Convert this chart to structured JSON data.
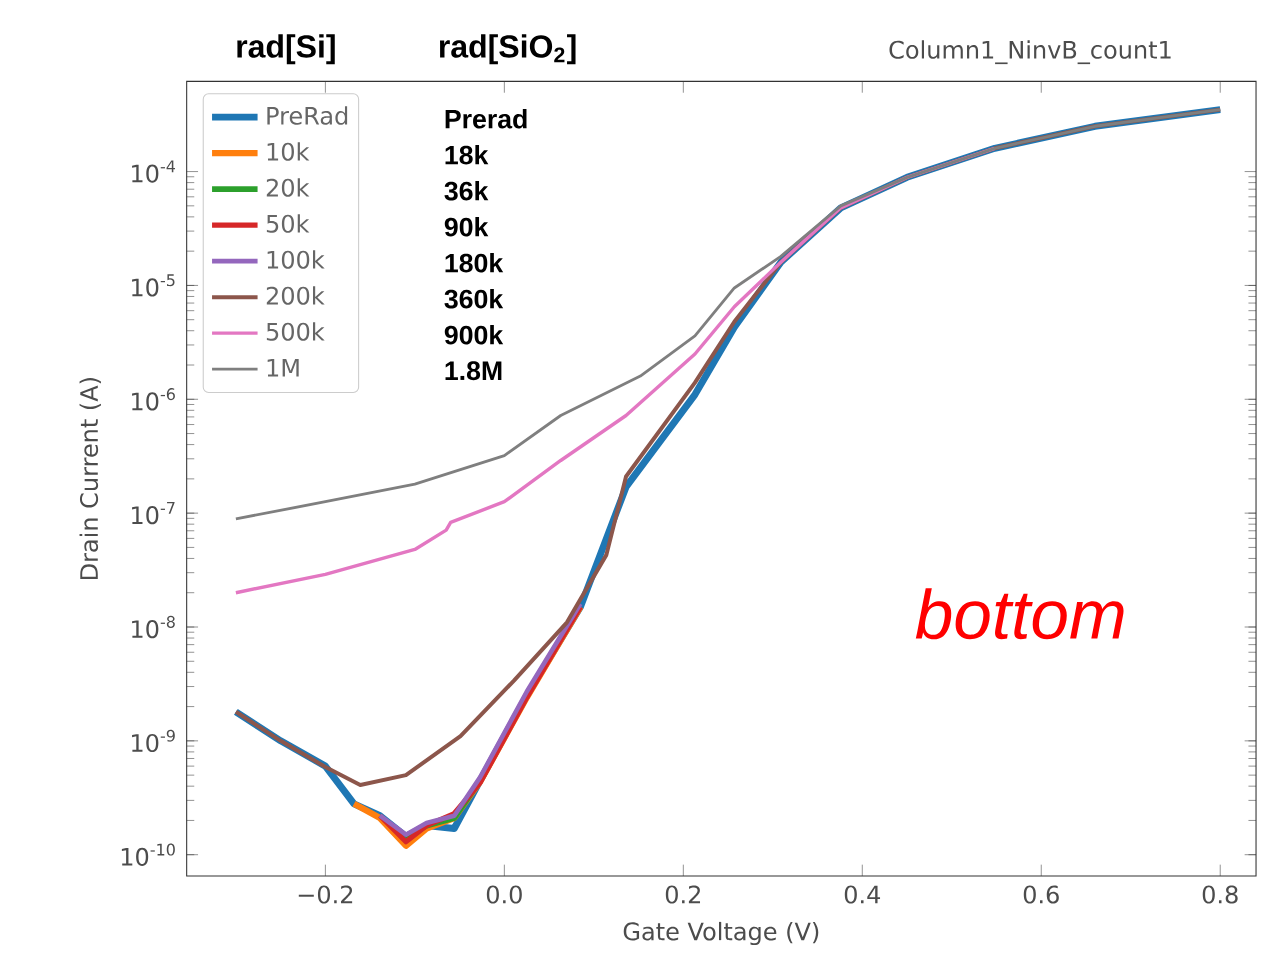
{
  "chart_data": {
    "type": "line",
    "title": "Column1_NinvB_count1",
    "xlabel": "Gate Voltage (V)",
    "ylabel": "Drain Current (A)",
    "annotations": [
      "rad[Si]",
      "rad[SiO$_{2}$]",
      "Prerad",
      "18k",
      "36k",
      "90k",
      "180k",
      "360k",
      "900k",
      "1.8M",
      "bottom"
    ],
    "log": "y",
    "xlim": [
      -0.355,
      0.84
    ],
    "ylim": [
      6.5e-11,
      0.00062
    ],
    "xticks": [
      {
        "value": -0.2,
        "label": "−0.2"
      },
      {
        "value": 0.0,
        "label": "0.0"
      },
      {
        "value": 0.2,
        "label": "0.2"
      },
      {
        "value": 0.4,
        "label": "0.4"
      },
      {
        "value": 0.6,
        "label": "0.6"
      },
      {
        "value": 0.8,
        "label": "0.8"
      }
    ],
    "yticks": [
      {
        "value": 1e-10,
        "label": "10$^{-10}$"
      },
      {
        "value": 1e-09,
        "label": "10$^{-9}$"
      },
      {
        "value": 1e-08,
        "label": "10$^{-8}$"
      },
      {
        "value": 1e-07,
        "label": "10$^{-7}$"
      },
      {
        "value": 1e-06,
        "label": "10$^{-6}$"
      },
      {
        "value": 1e-05,
        "label": "10$^{-5}$"
      },
      {
        "value": 0.0001,
        "label": "10$^{-4}$"
      }
    ],
    "grid": false,
    "legend": "top left",
    "marker": "none",
    "line_style": "solid",
    "series": [
      {
        "name": "PreRad",
        "color": "#1f77b4",
        "x": [
          -0.3,
          -0.25,
          -0.2,
          -0.168,
          -0.139,
          -0.11,
          -0.087,
          -0.056,
          -0.027,
          0.025,
          0.085,
          0.136,
          0.213,
          0.257,
          0.309,
          0.376,
          0.45,
          0.548,
          0.66,
          0.8
        ],
        "values": [
          1.8e-09,
          1e-09,
          6e-10,
          2.8e-10,
          2.2e-10,
          1.45e-10,
          1.8e-10,
          1.7e-10,
          4.5e-10,
          2.5e-09,
          1.5e-08,
          1.7e-07,
          1.1e-06,
          4.3e-06,
          1.6e-05,
          4.8e-05,
          8.9e-05,
          0.00016,
          0.00025,
          0.00035
        ]
      },
      {
        "name": "10k",
        "color": "#ff7f0e",
        "x": [
          -0.168,
          -0.139,
          -0.11,
          -0.087,
          -0.056,
          -0.027,
          0.025,
          0.085
        ],
        "values": [
          2.8e-10,
          2.1e-10,
          1.2e-10,
          1.7e-10,
          2.1e-10,
          4.4e-10,
          2.4e-09,
          1.5e-08
        ]
      },
      {
        "name": "20k",
        "color": "#2ca02c",
        "x": [
          -0.11,
          -0.087,
          -0.056,
          -0.027
        ],
        "values": [
          1.4e-10,
          1.8e-10,
          2.1e-10,
          4.5e-10
        ]
      },
      {
        "name": "50k",
        "color": "#d62728",
        "x": [
          -0.139,
          -0.11,
          -0.087,
          -0.056,
          -0.027,
          0.025,
          0.085
        ],
        "values": [
          2.2e-10,
          1.3e-10,
          1.8e-10,
          2.3e-10,
          4.3e-10,
          2.4e-09,
          1.5e-08
        ]
      },
      {
        "name": "100k",
        "color": "#9467bd",
        "x": [
          -0.139,
          -0.11,
          -0.087,
          -0.056,
          -0.027,
          0.025,
          0.085
        ],
        "values": [
          2.2e-10,
          1.5e-10,
          1.9e-10,
          2.2e-10,
          4.8e-10,
          2.7e-09,
          1.6e-08
        ]
      },
      {
        "name": "200k",
        "color": "#8c564b",
        "x": [
          -0.3,
          -0.25,
          -0.2,
          -0.161,
          -0.11,
          -0.049,
          0.011,
          0.07,
          0.114,
          0.136,
          0.213,
          0.257,
          0.309,
          0.376,
          0.45,
          0.548,
          0.66,
          0.8
        ],
        "values": [
          1.8e-09,
          1e-09,
          5.9e-10,
          4.1e-10,
          5e-10,
          1.1e-09,
          3.4e-09,
          1.1e-08,
          4.3e-08,
          2.1e-07,
          1.4e-06,
          4.8e-06,
          1.6e-05,
          4.8e-05,
          8.9e-05,
          0.00016,
          0.00025,
          0.00035
        ]
      },
      {
        "name": "500k",
        "color": "#e377c2",
        "x": [
          -0.3,
          -0.2,
          -0.1,
          -0.065,
          -0.06,
          0.0,
          0.063,
          0.136,
          0.213,
          0.257,
          0.309,
          0.376,
          0.45,
          0.548
        ],
        "values": [
          2e-08,
          2.9e-08,
          4.8e-08,
          7.1e-08,
          8.3e-08,
          1.26e-07,
          2.9e-07,
          7.2e-07,
          2.5e-06,
          6.5e-06,
          1.6e-05,
          4.8e-05,
          8.9e-05,
          0.00016
        ]
      },
      {
        "name": "1M",
        "color": "#7f7f7f",
        "x": [
          -0.3,
          -0.2,
          -0.1,
          0.0,
          0.063,
          0.152,
          0.213,
          0.257,
          0.309,
          0.376,
          0.45,
          0.548,
          0.66,
          0.8
        ],
        "values": [
          8.9e-08,
          1.26e-07,
          1.8e-07,
          3.2e-07,
          7.2e-07,
          1.6e-06,
          3.6e-06,
          9.5e-06,
          1.8e-05,
          5e-05,
          8.9e-05,
          0.00016,
          0.00025,
          0.00035
        ]
      }
    ]
  }
}
